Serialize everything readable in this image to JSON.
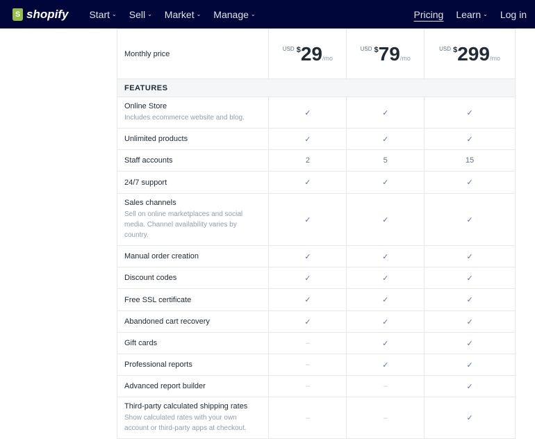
{
  "nav": {
    "brand": "shopify",
    "items": [
      "Start",
      "Sell",
      "Market",
      "Manage"
    ],
    "right": {
      "pricing": "Pricing",
      "learn": "Learn",
      "login": "Log in"
    }
  },
  "colors": {
    "nav_bg": "#000639",
    "check": "#5c6ac4",
    "brand": "#95bf47"
  },
  "price_row": {
    "label": "Monthly price",
    "plans": [
      {
        "currency": "USD",
        "symbol": "$",
        "amount": "29",
        "period": "/mo"
      },
      {
        "currency": "USD",
        "symbol": "$",
        "amount": "79",
        "period": "/mo"
      },
      {
        "currency": "USD",
        "symbol": "$",
        "amount": "299",
        "period": "/mo"
      }
    ]
  },
  "features_header": "FEATURES",
  "rows": [
    {
      "name": "Online Store",
      "desc": "Includes ecommerce website and blog.",
      "values": [
        "✓",
        "✓",
        "✓"
      ]
    },
    {
      "name": "Unlimited products",
      "values": [
        "✓",
        "✓",
        "✓"
      ]
    },
    {
      "name": "Staff accounts",
      "values": [
        "2",
        "5",
        "15"
      ]
    },
    {
      "name": "24/7 support",
      "values": [
        "✓",
        "✓",
        "✓"
      ]
    },
    {
      "name": "Sales channels",
      "desc": "Sell on online marketplaces and social media. Channel availability varies by country.",
      "values": [
        "✓",
        "✓",
        "✓"
      ]
    },
    {
      "name": "Manual order creation",
      "values": [
        "✓",
        "✓",
        "✓"
      ]
    },
    {
      "name": "Discount codes",
      "values": [
        "✓",
        "✓",
        "✓"
      ]
    },
    {
      "name": "Free SSL certificate",
      "values": [
        "✓",
        "✓",
        "✓"
      ]
    },
    {
      "name": "Abandoned cart recovery",
      "values": [
        "✓",
        "✓",
        "✓"
      ]
    },
    {
      "name": "Gift cards",
      "values": [
        "–",
        "✓",
        "✓"
      ]
    },
    {
      "name": "Professional reports",
      "values": [
        "–",
        "✓",
        "✓"
      ]
    },
    {
      "name": "Advanced report builder",
      "values": [
        "–",
        "–",
        "✓"
      ]
    },
    {
      "name": "Third-party calculated shipping rates",
      "desc": "Show calculated rates with your own account or third-party apps at checkout.",
      "values": [
        "–",
        "–",
        "✓"
      ]
    }
  ]
}
